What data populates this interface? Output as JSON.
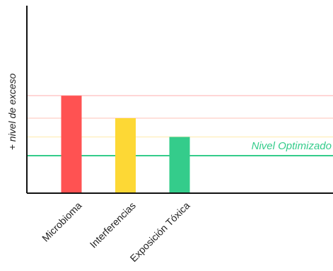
{
  "chart_data": {
    "type": "bar",
    "categories": [
      "Microbioma",
      "Interferencias",
      "Exposición Tóxica"
    ],
    "values": [
      5.2,
      4.0,
      3.0
    ],
    "bar_colors": [
      "#ff5252",
      "#fdd835",
      "#34cc8b"
    ],
    "ylabel": "+ nivel de exceso",
    "xlabel": "",
    "ylim": [
      0,
      10
    ],
    "grid": false,
    "reference_lines": [
      {
        "value": 5.2,
        "color": "#ffc9c9",
        "label": ""
      },
      {
        "value": 4.0,
        "color": "#ffd7cf",
        "label": ""
      },
      {
        "value": 3.0,
        "color": "#fff0c4",
        "label": ""
      },
      {
        "value": 2.0,
        "color": "#34cc8b",
        "label": "Nivel Optimizado"
      }
    ]
  }
}
